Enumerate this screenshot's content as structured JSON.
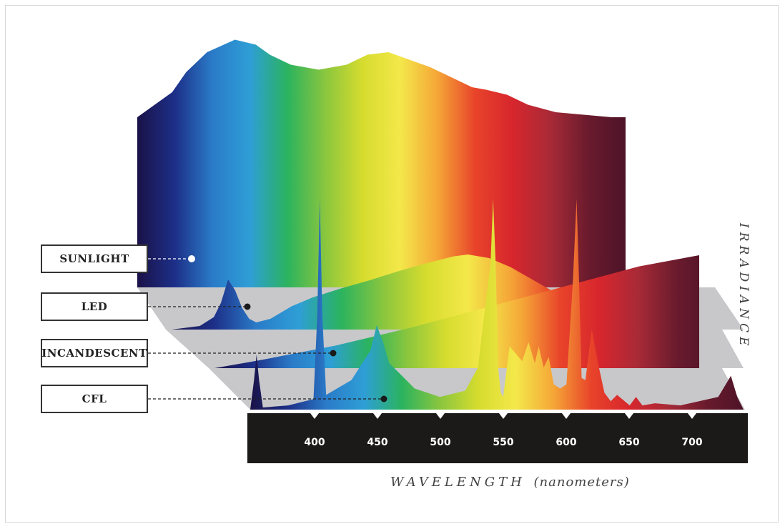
{
  "chart_data": {
    "type": "area",
    "layout": "stacked 3D ribbons, one per light source",
    "xlabel_main": "WAVELENGTH",
    "xlabel_unit": "(nanometers)",
    "ylabel": "IRRADIANCE",
    "x_ticks": [
      400,
      450,
      500,
      550,
      600,
      650,
      700
    ],
    "xlim": [
      350,
      740
    ],
    "series": [
      {
        "name": "SUNLIGHT",
        "x": [
          350,
          360,
          375,
          385,
          400,
          420,
          435,
          445,
          460,
          480,
          500,
          515,
          530,
          545,
          560,
          575,
          590,
          600,
          615,
          630,
          650,
          670,
          690,
          700
        ],
        "y": [
          0.68,
          0.72,
          0.78,
          0.86,
          0.94,
          0.99,
          0.97,
          0.93,
          0.89,
          0.87,
          0.89,
          0.93,
          0.94,
          0.91,
          0.88,
          0.84,
          0.8,
          0.79,
          0.77,
          0.73,
          0.7,
          0.69,
          0.68,
          0.68
        ]
      },
      {
        "name": "LED",
        "x": [
          350,
          370,
          380,
          385,
          390,
          395,
          400,
          405,
          410,
          420,
          435,
          450,
          470,
          490,
          510,
          530,
          550,
          560,
          575,
          590,
          610,
          630,
          650,
          670,
          690
        ],
        "y": [
          0.0,
          0.04,
          0.14,
          0.3,
          0.56,
          0.44,
          0.24,
          0.12,
          0.08,
          0.12,
          0.26,
          0.36,
          0.46,
          0.55,
          0.65,
          0.74,
          0.82,
          0.84,
          0.8,
          0.7,
          0.52,
          0.34,
          0.16,
          0.05,
          0.0
        ]
      },
      {
        "name": "INCANDESCENT",
        "x": [
          420,
          450,
          500,
          550,
          600,
          650,
          700,
          740
        ],
        "y": [
          0.0,
          0.07,
          0.2,
          0.36,
          0.54,
          0.72,
          0.9,
          1.0
        ]
      },
      {
        "name": "CFL",
        "x": [
          350,
          353,
          355,
          357,
          360,
          380,
          400,
          403,
          405,
          407,
          410,
          430,
          445,
          450,
          455,
          460,
          470,
          480,
          500,
          520,
          530,
          540,
          542,
          544,
          546,
          548,
          550,
          555,
          565,
          570,
          575,
          578,
          582,
          586,
          590,
          595,
          600,
          605,
          608,
          610,
          612,
          615,
          620,
          625,
          630,
          635,
          640,
          650,
          655,
          660,
          670,
          690,
          720,
          730,
          735,
          740
        ],
        "y": [
          0.0,
          0.14,
          0.26,
          0.14,
          0.01,
          0.02,
          0.05,
          0.45,
          1.0,
          0.45,
          0.07,
          0.14,
          0.28,
          0.4,
          0.32,
          0.22,
          0.16,
          0.1,
          0.06,
          0.09,
          0.2,
          0.7,
          1.0,
          0.7,
          0.2,
          0.08,
          0.06,
          0.3,
          0.23,
          0.32,
          0.22,
          0.3,
          0.2,
          0.25,
          0.12,
          0.1,
          0.12,
          0.6,
          1.0,
          0.6,
          0.15,
          0.14,
          0.38,
          0.22,
          0.08,
          0.04,
          0.07,
          0.02,
          0.06,
          0.02,
          0.03,
          0.02,
          0.06,
          0.16,
          0.06,
          0.0
        ]
      }
    ]
  },
  "colors": {
    "axis_bar": "#1c1a19",
    "floor_gray": "#c8c8cb",
    "spectrum_stops": [
      "#1a1248",
      "#1d2f88",
      "#2a7bc8",
      "#2e9ed6",
      "#2bb35e",
      "#8ac63e",
      "#d6dc2e",
      "#f4e84a",
      "#f5a637",
      "#e8432a",
      "#d7262d",
      "#a82a37",
      "#6a1b2d",
      "#4e1328"
    ]
  }
}
